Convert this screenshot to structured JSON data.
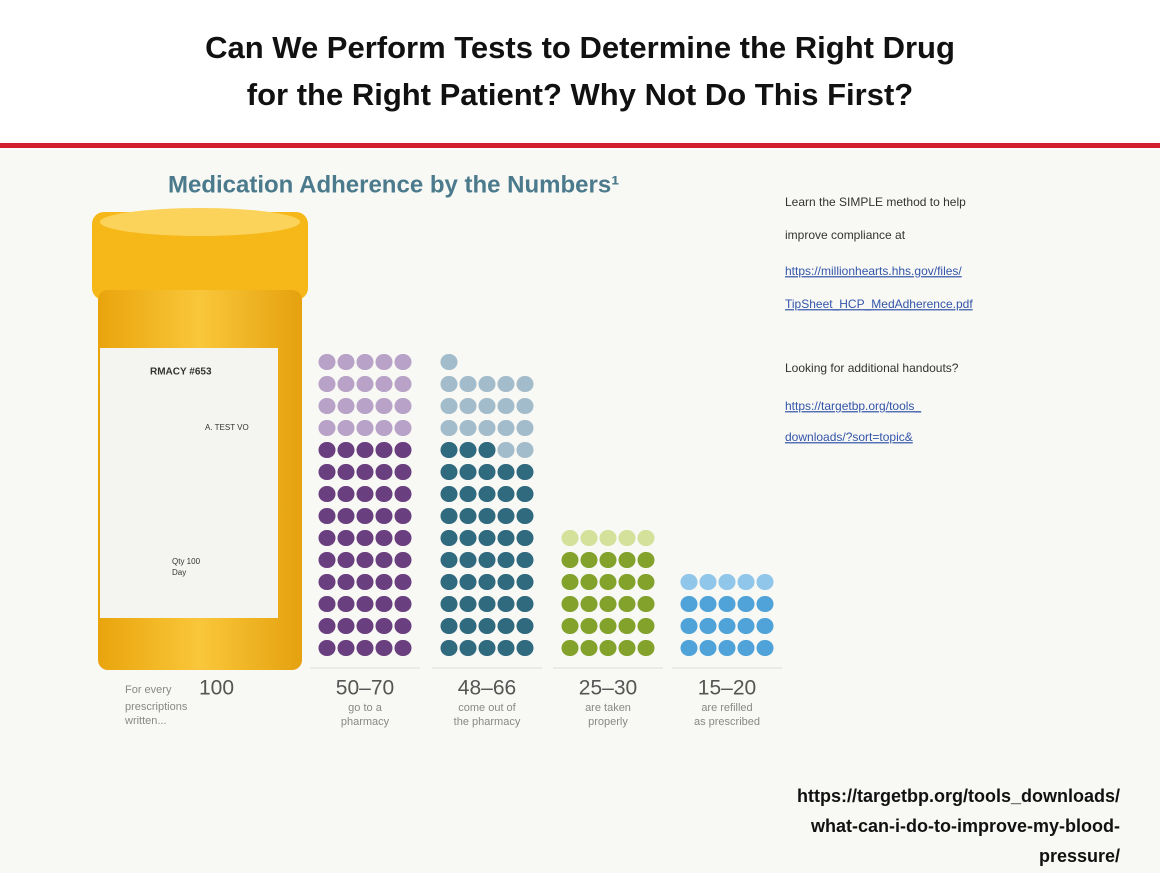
{
  "header": {
    "title_line1": "Can We Perform Tests to Determine the Right Drug",
    "title_line2": "for the Right Patient?  Why Not Do This First?"
  },
  "infographic": {
    "title": "Medication Adherence by the Numbers¹",
    "bottle": {
      "label1": "RMACY #653",
      "label2": "A. TEST VO",
      "label3": "Qty 100",
      "label4": "Day"
    },
    "intro": {
      "prefix": "For every",
      "number": "100",
      "line1": "prescriptions",
      "line2": "written..."
    },
    "columns": [
      {
        "value_label": "50–70",
        "low": 50,
        "high": 70,
        "caption1": "go to a",
        "caption2": "pharmacy",
        "dark": "#6a3f80",
        "light": "#b8a2c8"
      },
      {
        "value_label": "48–66",
        "low": 48,
        "high": 66,
        "caption1": "come out of",
        "caption2": "the pharmacy",
        "dark": "#2f6a7e",
        "light": "#a3bccb"
      },
      {
        "value_label": "25–30",
        "low": 25,
        "high": 30,
        "caption1": "are taken",
        "caption2": "properly",
        "dark": "#82a22c",
        "light": "#d3e19a"
      },
      {
        "value_label": "15–20",
        "low": 15,
        "high": 20,
        "caption1": "are refilled",
        "caption2": "as prescribed",
        "dark": "#4fa3d8",
        "light": "#8fc6ea"
      }
    ]
  },
  "side": {
    "line1": "Learn the SIMPLE method to help",
    "line2": "improve compliance at",
    "link1a": "https://millionhearts.hhs.gov/files/",
    "link1b": "TipSheet_HCP_MedAdherence.pdf",
    "line3": "Looking for additional handouts?",
    "link2a": "https://targetbp.org/tools_",
    "link2b": "downloads/?sort=topic&"
  },
  "footer": {
    "url1": "https://targetbp.org/tools_downloads/",
    "url2": "what-can-i-do-to-improve-my-blood-",
    "url3": "pressure/"
  }
}
